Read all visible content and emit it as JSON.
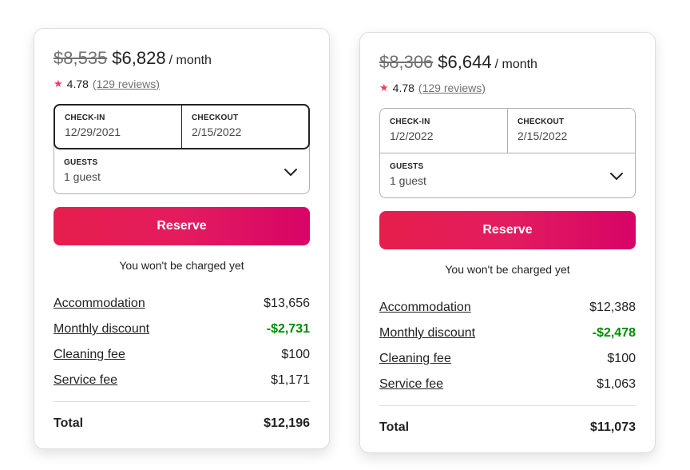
{
  "listings": [
    {
      "original_price": "$8,535",
      "price": "$6,828",
      "per": "/ month",
      "rating": "4.78",
      "reviews": "(129 reviews)",
      "checkin_label": "CHECK-IN",
      "checkin": "12/29/2021",
      "checkout_label": "CHECKOUT",
      "checkout": "2/15/2022",
      "guests_label": "GUESTS",
      "guests": "1 guest",
      "reserve": "Reserve",
      "no_charge": "You won't be charged yet",
      "items": [
        {
          "label": "Accommodation",
          "value": "$13,656"
        },
        {
          "label": "Monthly discount",
          "value": "-$2,731"
        },
        {
          "label": "Cleaning fee",
          "value": "$100"
        },
        {
          "label": "Service fee",
          "value": "$1,171"
        }
      ],
      "total_label": "Total",
      "total": "$12,196"
    },
    {
      "original_price": "$8,306",
      "price": "$6,644",
      "per": "/ month",
      "rating": "4.78",
      "reviews": "(129 reviews)",
      "checkin_label": "CHECK-IN",
      "checkin": "1/2/2022",
      "checkout_label": "CHECKOUT",
      "checkout": "2/15/2022",
      "guests_label": "GUESTS",
      "guests": "1 guest",
      "reserve": "Reserve",
      "no_charge": "You won't be charged yet",
      "items": [
        {
          "label": "Accommodation",
          "value": "$12,388"
        },
        {
          "label": "Monthly discount",
          "value": "-$2,478"
        },
        {
          "label": "Cleaning fee",
          "value": "$100"
        },
        {
          "label": "Service fee",
          "value": "$1,063"
        }
      ],
      "total_label": "Total",
      "total": "$11,073"
    }
  ],
  "colors": {
    "accent": "#ff385c",
    "reserve_gradient_start": "#e61e4d",
    "reserve_gradient_end": "#d70466",
    "discount": "#008a05"
  },
  "icons": {
    "rating": "star-icon",
    "guests_dropdown": "chevron-down-icon"
  }
}
